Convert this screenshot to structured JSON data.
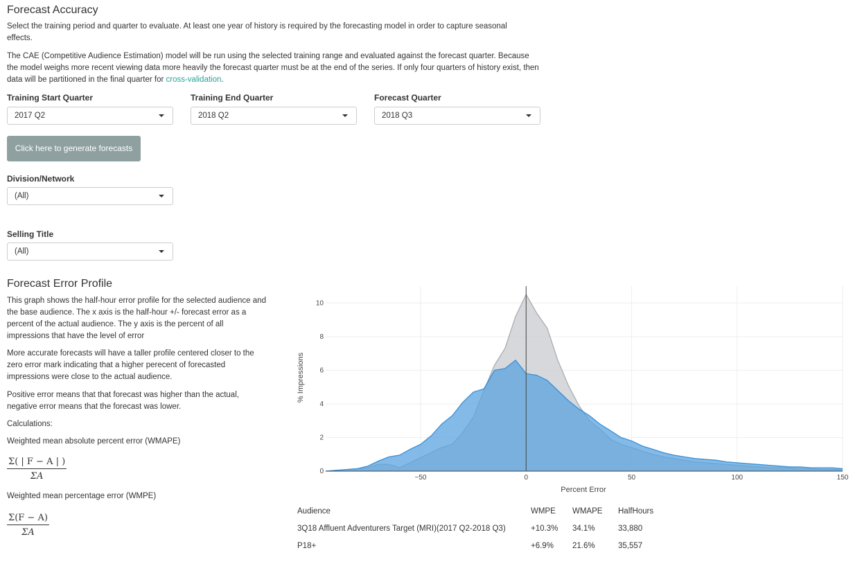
{
  "page_title": "Forecast Accuracy",
  "intro_1": "Select the training period and quarter to evaluate. At least one year of history is required by the forecasting model in order to capture seasonal effects.",
  "intro_2": "The CAE (Competitive Audience Estimation) model will be run using the selected training range and evaluated against the forecast quarter. Because the model weighs more recent viewing data more heavily the forecast quarter must be at the end of the series. If only four quarters of history exist, then data will be partitioned in the final quarter for ",
  "intro_2_link": "cross-validation",
  "intro_2_end": ".",
  "filters": {
    "training_start_label": "Training Start Quarter",
    "training_start_value": "2017 Q2",
    "training_end_label": "Training End Quarter",
    "training_end_value": "2018 Q2",
    "forecast_label": "Forecast Quarter",
    "forecast_value": "2018 Q3"
  },
  "generate_button": "Click here to generate forecasts",
  "division": {
    "label": "Division/Network",
    "value": "(All)"
  },
  "selling_title": {
    "label": "Selling Title",
    "value": "(All)"
  },
  "profile": {
    "title": "Forecast Error Profile",
    "p1": "This graph shows the half-hour error profile for the selected audience and the base audience. The x axis is the half-hour +/- forecast error as a percent of the actual audience. The y axis is the percent of all impressions that have the level of error",
    "p2": "More accurate forecasts will have a taller profile centered closer to the zero error mark indicating that a higher perecent of forecasted impressions were close to the actual audience.",
    "p3": "Positive error means that that forecast was higher than the actual, negative error means that the forecast was lower.",
    "calc_label": "Calculations:",
    "wmape_label": "Weighted mean absolute percent error (WMAPE)",
    "wmape_num": "Σ( | F − A | )",
    "wmape_den": "ΣA",
    "wmpe_label": "Weighted mean percentage error (WMPE)",
    "wmpe_num": "Σ(F − A)",
    "wmpe_den": "ΣA"
  },
  "chart_data": {
    "type": "area",
    "xlabel": "Percent Error",
    "ylabel": "% Impressions",
    "xlim": [
      -95,
      150
    ],
    "ylim": [
      0,
      11
    ],
    "xticks": [
      -50,
      0,
      50,
      100,
      150
    ],
    "yticks": [
      0,
      2,
      4,
      6,
      8,
      10
    ],
    "grid": true,
    "x": [
      -95,
      -90,
      -85,
      -80,
      -75,
      -70,
      -65,
      -60,
      -55,
      -50,
      -45,
      -40,
      -35,
      -30,
      -25,
      -20,
      -15,
      -10,
      -5,
      0,
      5,
      10,
      15,
      20,
      25,
      30,
      35,
      40,
      45,
      50,
      55,
      60,
      65,
      70,
      75,
      80,
      85,
      90,
      95,
      100,
      105,
      110,
      115,
      120,
      125,
      130,
      135,
      140,
      145,
      150
    ],
    "series": [
      {
        "color": "#c9cbd0",
        "values": [
          0,
          0.05,
          0.1,
          0.15,
          0.2,
          0.4,
          0.4,
          0.2,
          0.5,
          0.8,
          1.1,
          1.4,
          1.6,
          2.3,
          3.2,
          4.8,
          6.3,
          7.3,
          9.2,
          10.5,
          9.4,
          8.5,
          6.6,
          5.1,
          3.9,
          3.0,
          2.5,
          1.9,
          1.6,
          1.4,
          1.2,
          1.0,
          0.85,
          0.75,
          0.65,
          0.55,
          0.5,
          0.45,
          0.4,
          0.35,
          0.3,
          0.25,
          0.2,
          0.2,
          0.2,
          0.15,
          0.15,
          0.1,
          0.1,
          0.1
        ]
      },
      {
        "color": "#5aa3df",
        "values": [
          0,
          0.05,
          0.1,
          0.15,
          0.3,
          0.6,
          0.85,
          0.95,
          1.3,
          1.6,
          2.1,
          2.8,
          3.3,
          4.1,
          4.7,
          4.9,
          6.0,
          6.1,
          6.6,
          5.8,
          5.7,
          5.4,
          4.8,
          4.2,
          3.7,
          3.3,
          2.8,
          2.4,
          2.0,
          1.8,
          1.5,
          1.3,
          1.1,
          0.95,
          0.85,
          0.75,
          0.7,
          0.65,
          0.55,
          0.5,
          0.45,
          0.4,
          0.35,
          0.3,
          0.25,
          0.25,
          0.2,
          0.2,
          0.2,
          0.15
        ]
      }
    ]
  },
  "table": {
    "headers": [
      "Audience",
      "WMPE",
      "WMAPE",
      "HalfHours"
    ],
    "rows": [
      [
        "3Q18 Affluent Adventurers Target (MRI)(2017 Q2-2018 Q3)",
        "+10.3%",
        "34.1%",
        "33,880"
      ],
      [
        "P18+",
        "+6.9%",
        "21.6%",
        "35,557"
      ]
    ]
  }
}
